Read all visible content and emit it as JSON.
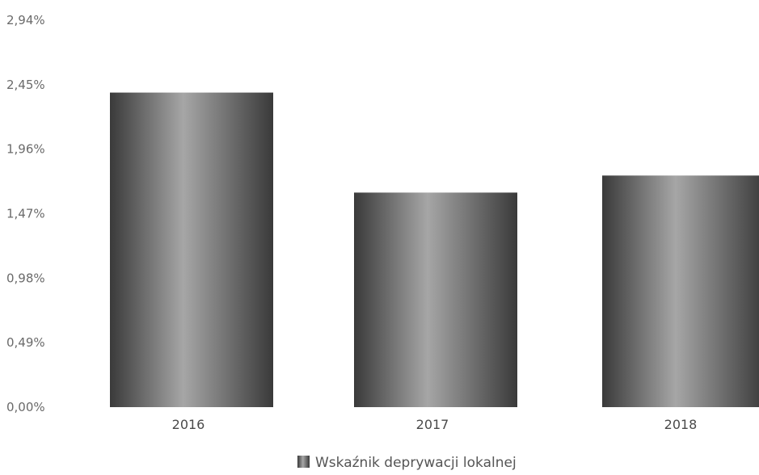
{
  "chart_data": {
    "type": "bar",
    "categories": [
      "2016",
      "2017",
      "2018"
    ],
    "series": [
      {
        "name": "Wskaźnik deprywacji lokalnej",
        "values": [
          2.39,
          1.63,
          1.76
        ]
      }
    ],
    "ylim": [
      0,
      2.94
    ],
    "y_ticks": [
      "0,00%",
      "0,49%",
      "0,98%",
      "1,47%",
      "1,96%",
      "2,45%",
      "2,94%"
    ],
    "grid": false,
    "legend_position": "bottom",
    "colors": {
      "bar_dark": "#3a3a3a",
      "bar_light": "#a6a6a6"
    }
  }
}
